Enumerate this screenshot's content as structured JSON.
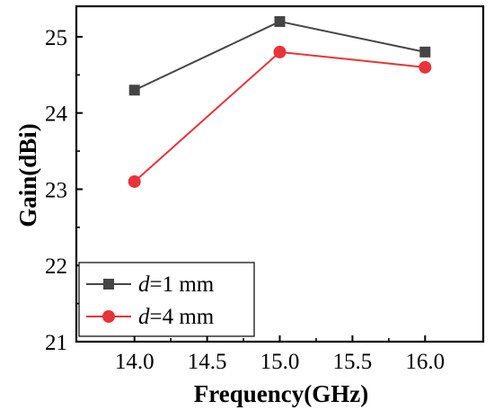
{
  "chart_data": {
    "type": "line",
    "xlabel": "Frequency(GHz)",
    "ylabel": "Gain(dBi)",
    "xlim": [
      13.6,
      16.4
    ],
    "ylim": [
      21,
      25.4
    ],
    "xticks": [
      "14.0",
      "14.5",
      "15.0",
      "15.5",
      "16.0"
    ],
    "xtick_values": [
      14.0,
      14.5,
      15.0,
      15.5,
      16.0
    ],
    "yticks": [
      "21",
      "22",
      "23",
      "24",
      "25"
    ],
    "ytick_values": [
      21,
      22,
      23,
      24,
      25
    ],
    "grid": false,
    "legend_position": "bottom-left",
    "series": [
      {
        "name_italic": "d",
        "name_rest": "=1 mm",
        "color": "#454545",
        "marker": "square",
        "x": [
          14.0,
          15.0,
          16.0
        ],
        "y": [
          24.3,
          25.2,
          24.8
        ]
      },
      {
        "name_italic": "d",
        "name_rest": "=4 mm",
        "color": "#e8333a",
        "marker": "circle",
        "x": [
          14.0,
          15.0,
          16.0
        ],
        "y": [
          23.1,
          24.8,
          24.6
        ]
      }
    ]
  }
}
